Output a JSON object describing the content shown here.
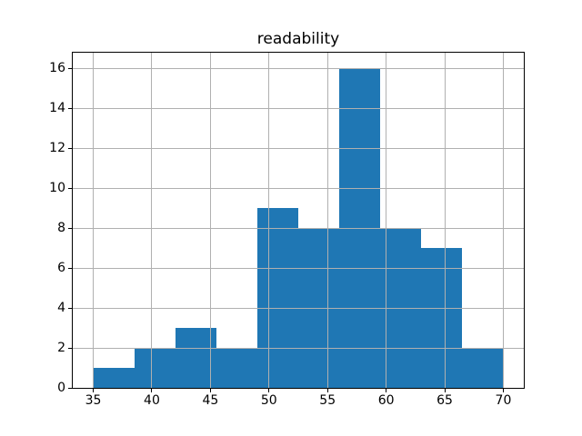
{
  "chart_data": {
    "type": "bar",
    "subtype": "histogram",
    "title": "readability",
    "xlabel": "",
    "ylabel": "",
    "bin_edges": [
      35,
      38.5,
      42,
      45.5,
      49,
      52.5,
      56,
      59.5,
      63,
      66.5,
      70
    ],
    "counts": [
      1,
      2,
      3,
      2,
      9,
      8,
      16,
      8,
      7,
      2
    ],
    "xticks": [
      35,
      40,
      45,
      50,
      55,
      60,
      65,
      70
    ],
    "yticks": [
      0,
      2,
      4,
      6,
      8,
      10,
      12,
      14,
      16
    ],
    "xlim": [
      33.25,
      71.75
    ],
    "ylim": [
      0,
      16.8
    ],
    "bar_color": "#1f77b4",
    "grid": true,
    "grid_color": "#b0b0b0",
    "grid_above_bars": true,
    "background_color": "#ffffff",
    "legend": null
  }
}
